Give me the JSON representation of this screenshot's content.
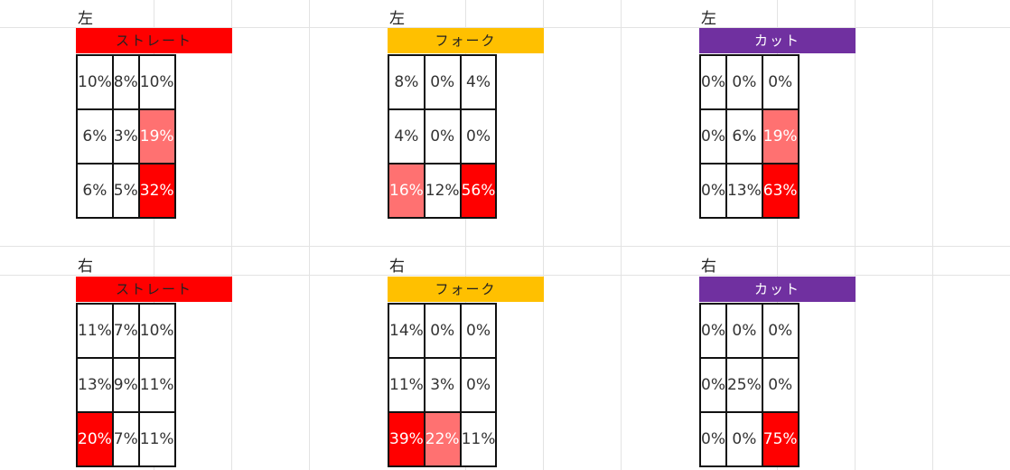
{
  "colors": {
    "straight": "#ff0000",
    "fork": "#ffc000",
    "cut": "#7030a0",
    "heat_medium": "#ff7171",
    "heat_high": "#ff0000"
  },
  "rows": [
    {
      "side": "左",
      "tables": [
        {
          "pitch": "ストレート",
          "pitch_key": "straight",
          "cells": [
            [
              {
                "v": "10%"
              },
              {
                "v": "8%"
              },
              {
                "v": "10%"
              }
            ],
            [
              {
                "v": "6%"
              },
              {
                "v": "3%"
              },
              {
                "v": "19%",
                "heat": "medium"
              }
            ],
            [
              {
                "v": "6%"
              },
              {
                "v": "5%"
              },
              {
                "v": "32%",
                "heat": "high"
              }
            ]
          ]
        },
        {
          "pitch": "フォーク",
          "pitch_key": "fork",
          "cells": [
            [
              {
                "v": "8%"
              },
              {
                "v": "0%"
              },
              {
                "v": "4%"
              }
            ],
            [
              {
                "v": "4%"
              },
              {
                "v": "0%"
              },
              {
                "v": "0%"
              }
            ],
            [
              {
                "v": "16%",
                "heat": "medium"
              },
              {
                "v": "12%"
              },
              {
                "v": "56%",
                "heat": "high"
              }
            ]
          ]
        },
        {
          "pitch": "カット",
          "pitch_key": "cut",
          "cells": [
            [
              {
                "v": "0%"
              },
              {
                "v": "0%"
              },
              {
                "v": "0%"
              }
            ],
            [
              {
                "v": "0%"
              },
              {
                "v": "6%"
              },
              {
                "v": "19%",
                "heat": "medium"
              }
            ],
            [
              {
                "v": "0%"
              },
              {
                "v": "13%"
              },
              {
                "v": "63%",
                "heat": "high"
              }
            ]
          ]
        }
      ]
    },
    {
      "side": "右",
      "tables": [
        {
          "pitch": "ストレート",
          "pitch_key": "straight",
          "cells": [
            [
              {
                "v": "11%"
              },
              {
                "v": "7%"
              },
              {
                "v": "10%"
              }
            ],
            [
              {
                "v": "13%"
              },
              {
                "v": "9%"
              },
              {
                "v": "11%"
              }
            ],
            [
              {
                "v": "20%",
                "heat": "high"
              },
              {
                "v": "7%"
              },
              {
                "v": "11%"
              }
            ]
          ]
        },
        {
          "pitch": "フォーク",
          "pitch_key": "fork",
          "cells": [
            [
              {
                "v": "14%"
              },
              {
                "v": "0%"
              },
              {
                "v": "0%"
              }
            ],
            [
              {
                "v": "11%"
              },
              {
                "v": "3%"
              },
              {
                "v": "0%"
              }
            ],
            [
              {
                "v": "39%",
                "heat": "high"
              },
              {
                "v": "22%",
                "heat": "medium"
              },
              {
                "v": "11%"
              }
            ]
          ]
        },
        {
          "pitch": "カット",
          "pitch_key": "cut",
          "cells": [
            [
              {
                "v": "0%"
              },
              {
                "v": "0%"
              },
              {
                "v": "0%"
              }
            ],
            [
              {
                "v": "0%"
              },
              {
                "v": "25%"
              },
              {
                "v": "0%"
              }
            ],
            [
              {
                "v": "0%"
              },
              {
                "v": "0%"
              },
              {
                "v": "75%",
                "heat": "high"
              }
            ]
          ]
        }
      ]
    }
  ]
}
